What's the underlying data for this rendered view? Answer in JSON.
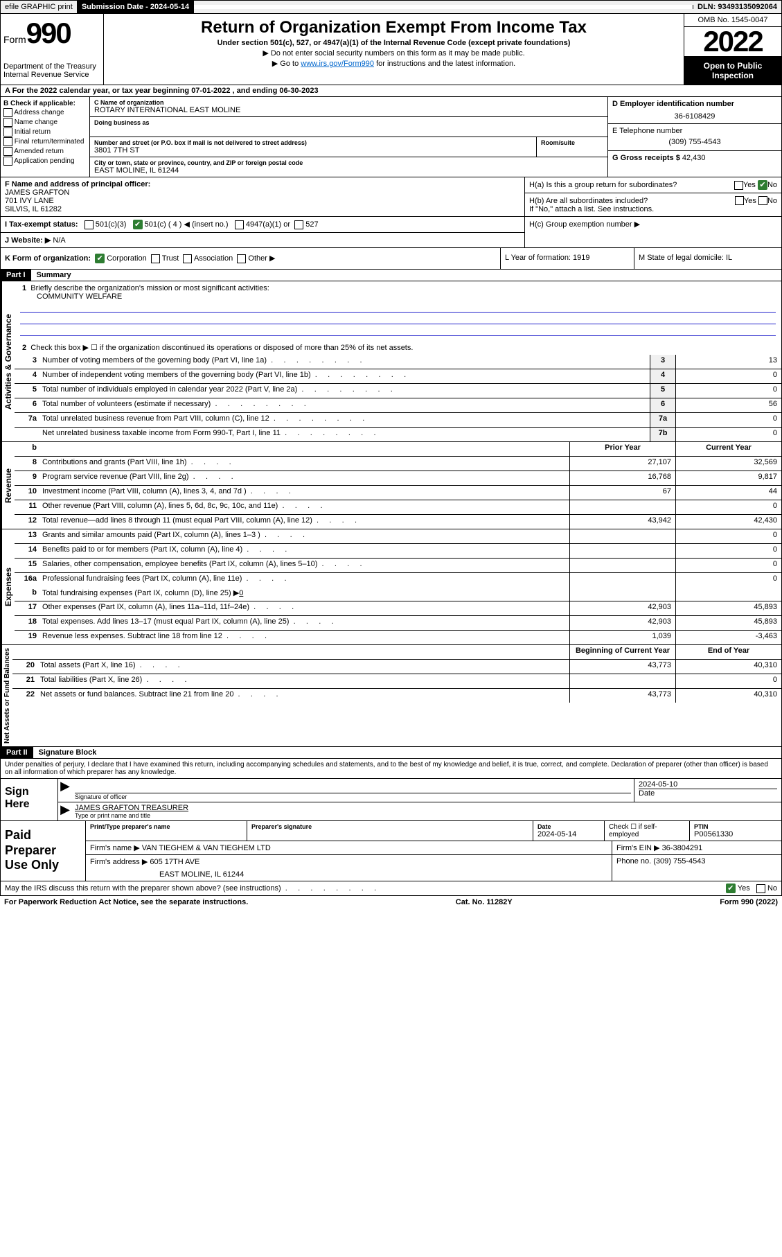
{
  "top_bar": {
    "efile": "efile GRAPHIC print",
    "submission_label": "Submission Date - 2024-05-14",
    "dln_label": "DLN: 93493135092064"
  },
  "header": {
    "form_label": "Form",
    "form_number": "990",
    "dept": "Department of the Treasury",
    "irs": "Internal Revenue Service",
    "title": "Return of Organization Exempt From Income Tax",
    "sub": "Under section 501(c), 527, or 4947(a)(1) of the Internal Revenue Code (except private foundations)",
    "note1": "▶ Do not enter social security numbers on this form as it may be made public.",
    "note2_pre": "▶ Go to ",
    "note2_link": "www.irs.gov/Form990",
    "note2_post": " for instructions and the latest information.",
    "omb": "OMB No. 1545-0047",
    "year": "2022",
    "open_public": "Open to Public Inspection"
  },
  "row_a": "A For the 2022 calendar year, or tax year beginning 07-01-2022     , and ending 06-30-2023",
  "entity": {
    "b_label": "B Check if applicable:",
    "b_opts": [
      "Address change",
      "Name change",
      "Initial return",
      "Final return/terminated",
      "Amended return",
      "Application pending"
    ],
    "c_label": "C Name of organization",
    "c_name": "ROTARY INTERNATIONAL EAST MOLINE",
    "dba_label": "Doing business as",
    "addr_label": "Number and street (or P.O. box if mail is not delivered to street address)",
    "addr": "3801 7TH ST",
    "room_label": "Room/suite",
    "city_label": "City or town, state or province, country, and ZIP or foreign postal code",
    "city": "EAST MOLINE, IL  61244",
    "d_label": "D Employer identification number",
    "d_ein": "36-6108429",
    "e_label": "E Telephone number",
    "e_phone": "(309) 755-4543",
    "g_label": "G Gross receipts $",
    "g_val": "42,430"
  },
  "fghijk": {
    "f_label": "F  Name and address of principal officer:",
    "f_name": "JAMES GRAFTON",
    "f_addr1": "701 IVY LANE",
    "f_addr2": "SILVIS, IL  61282",
    "i_label": "I   Tax-exempt status:",
    "i_501c3": "501(c)(3)",
    "i_501c": "501(c) ( 4 ) ◀ (insert no.)",
    "i_4947": "4947(a)(1) or",
    "i_527": "527",
    "j_label": "J   Website: ▶",
    "j_val": "N/A",
    "ha_label": "H(a)  Is this a group return for subordinates?",
    "hb_label": "H(b)  Are all subordinates included?",
    "hb_note": "If \"No,\" attach a list. See instructions.",
    "hc_label": "H(c)  Group exemption number ▶",
    "yes": "Yes",
    "no": "No"
  },
  "k_row": {
    "k_label": "K Form of organization:",
    "k_corp": "Corporation",
    "k_trust": "Trust",
    "k_assoc": "Association",
    "k_other": "Other ▶",
    "l_label": "L Year of formation: 1919",
    "m_label": "M State of legal domicile: IL"
  },
  "part1": {
    "header": "Part I",
    "title": "Summary",
    "line1": "Briefly describe the organization's mission or most significant activities:",
    "mission": "COMMUNITY WELFARE",
    "line2": "Check this box ▶ ☐  if the organization discontinued its operations or disposed of more than 25% of its net assets.",
    "rows_single": [
      {
        "n": "3",
        "t": "Number of voting members of the governing body (Part VI, line 1a)",
        "k": "3",
        "v": "13"
      },
      {
        "n": "4",
        "t": "Number of independent voting members of the governing body (Part VI, line 1b)",
        "k": "4",
        "v": "0"
      },
      {
        "n": "5",
        "t": "Total number of individuals employed in calendar year 2022 (Part V, line 2a)",
        "k": "5",
        "v": "0"
      },
      {
        "n": "6",
        "t": "Total number of volunteers (estimate if necessary)",
        "k": "6",
        "v": "56"
      },
      {
        "n": "7a",
        "t": "Total unrelated business revenue from Part VIII, column (C), line 12",
        "k": "7a",
        "v": "0"
      },
      {
        "n": "",
        "t": "Net unrelated business taxable income from Form 990-T, Part I, line 11",
        "k": "7b",
        "v": "0"
      }
    ],
    "col_b": "b",
    "header_prior": "Prior Year",
    "header_curr": "Current Year",
    "rev_rows": [
      {
        "n": "8",
        "t": "Contributions and grants (Part VIII, line 1h)",
        "p": "27,107",
        "c": "32,569"
      },
      {
        "n": "9",
        "t": "Program service revenue (Part VIII, line 2g)",
        "p": "16,768",
        "c": "9,817"
      },
      {
        "n": "10",
        "t": "Investment income (Part VIII, column (A), lines 3, 4, and 7d )",
        "p": "67",
        "c": "44"
      },
      {
        "n": "11",
        "t": "Other revenue (Part VIII, column (A), lines 5, 6d, 8c, 9c, 10c, and 11e)",
        "p": "",
        "c": "0"
      },
      {
        "n": "12",
        "t": "Total revenue—add lines 8 through 11 (must equal Part VIII, column (A), line 12)",
        "p": "43,942",
        "c": "42,430"
      }
    ],
    "exp_rows": [
      {
        "n": "13",
        "t": "Grants and similar amounts paid (Part IX, column (A), lines 1–3 )",
        "p": "",
        "c": "0"
      },
      {
        "n": "14",
        "t": "Benefits paid to or for members (Part IX, column (A), line 4)",
        "p": "",
        "c": "0"
      },
      {
        "n": "15",
        "t": "Salaries, other compensation, employee benefits (Part IX, column (A), lines 5–10)",
        "p": "",
        "c": "0"
      },
      {
        "n": "16a",
        "t": "Professional fundraising fees (Part IX, column (A), line 11e)",
        "p": "",
        "c": "0"
      }
    ],
    "line16b_n": "b",
    "line16b": "Total fundraising expenses (Part IX, column (D), line 25) ▶",
    "line16b_val": "0",
    "exp_rows2": [
      {
        "n": "17",
        "t": "Other expenses (Part IX, column (A), lines 11a–11d, 11f–24e)",
        "p": "42,903",
        "c": "45,893"
      },
      {
        "n": "18",
        "t": "Total expenses. Add lines 13–17 (must equal Part IX, column (A), line 25)",
        "p": "42,903",
        "c": "45,893"
      },
      {
        "n": "19",
        "t": "Revenue less expenses. Subtract line 18 from line 12",
        "p": "1,039",
        "c": "-3,463"
      }
    ],
    "header_boy": "Beginning of Current Year",
    "header_eoy": "End of Year",
    "na_rows": [
      {
        "n": "20",
        "t": "Total assets (Part X, line 16)",
        "p": "43,773",
        "c": "40,310"
      },
      {
        "n": "21",
        "t": "Total liabilities (Part X, line 26)",
        "p": "",
        "c": "0"
      },
      {
        "n": "22",
        "t": "Net assets or fund balances. Subtract line 21 from line 20",
        "p": "43,773",
        "c": "40,310"
      }
    ],
    "vert_ag": "Activities & Governance",
    "vert_rev": "Revenue",
    "vert_exp": "Expenses",
    "vert_na": "Net Assets or Fund Balances"
  },
  "part2": {
    "header": "Part II",
    "title": "Signature Block",
    "decl": "Under penalties of perjury, I declare that I have examined this return, including accompanying schedules and statements, and to the best of my knowledge and belief, it is true, correct, and complete. Declaration of preparer (other than officer) is based on all information of which preparer has any knowledge.",
    "sign_here": "Sign Here",
    "sig_officer_lab": "Signature of officer",
    "sig_date": "2024-05-10",
    "date_lab": "Date",
    "name_title": "JAMES GRAFTON TREASURER",
    "name_title_lab": "Type or print name and title",
    "paid_prep": "Paid Preparer Use Only",
    "prep_name_lab": "Print/Type preparer's name",
    "prep_sig_lab": "Preparer's signature",
    "prep_date_lab": "Date",
    "prep_date": "2024-05-14",
    "check_if_lab": "Check ☐ if self-employed",
    "ptin_lab": "PTIN",
    "ptin": "P00561330",
    "firm_name_lab": "Firm's name      ▶",
    "firm_name": "VAN TIEGHEM & VAN TIEGHEM LTD",
    "firm_ein_lab": "Firm's EIN ▶",
    "firm_ein": "36-3804291",
    "firm_addr_lab": "Firm's address ▶",
    "firm_addr1": "605 17TH AVE",
    "firm_addr2": "EAST MOLINE, IL  61244",
    "phone_lab": "Phone no.",
    "phone": "(309) 755-4543",
    "discuss": "May the IRS discuss this return with the preparer shown above? (see instructions)",
    "yes": "Yes",
    "no": "No"
  },
  "footer": {
    "paperwork": "For Paperwork Reduction Act Notice, see the separate instructions.",
    "cat": "Cat. No. 11282Y",
    "form": "Form 990 (2022)"
  }
}
